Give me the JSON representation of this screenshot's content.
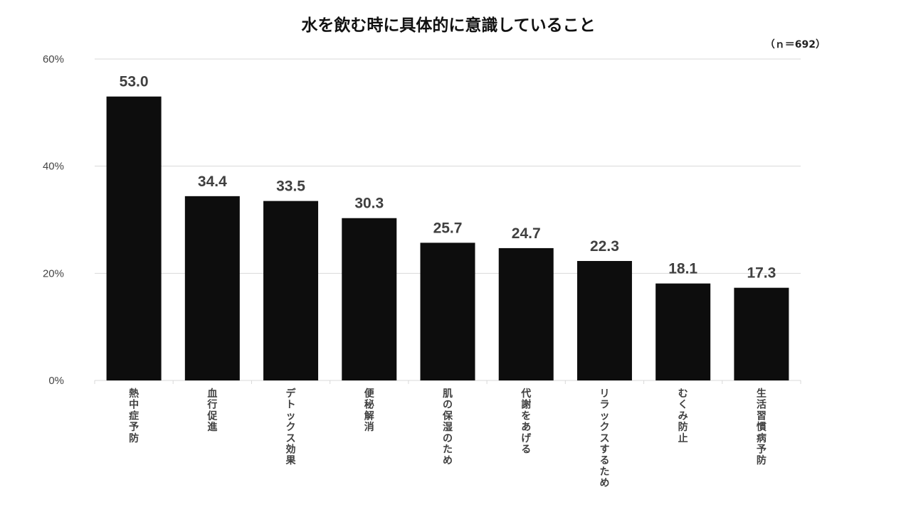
{
  "chart_data": {
    "type": "bar",
    "title": "水を飲む時に具体的に意識していること",
    "note": "（ｎ＝692）",
    "categories": [
      "熱中症予防",
      "血行促進",
      "デトックス効果",
      "便秘解消",
      "肌の保湿のため",
      "代謝をあげる",
      "リラックスするため",
      "むくみ防止",
      "生活習慣病予防"
    ],
    "values": [
      53.0,
      34.4,
      33.5,
      30.3,
      25.7,
      24.7,
      22.3,
      18.1,
      17.3
    ],
    "value_labels": [
      "53.0",
      "34.4",
      "33.5",
      "30.3",
      "25.7",
      "24.7",
      "22.3",
      "18.1",
      "17.3"
    ],
    "y_ticks": [
      {
        "value": 60,
        "label": "60%"
      },
      {
        "value": 40,
        "label": "40%"
      },
      {
        "value": 20,
        "label": "20%"
      },
      {
        "value": 0,
        "label": "0%"
      }
    ],
    "ylim": [
      0,
      60
    ],
    "bar_color": "#0d0d0d",
    "grid": true
  }
}
